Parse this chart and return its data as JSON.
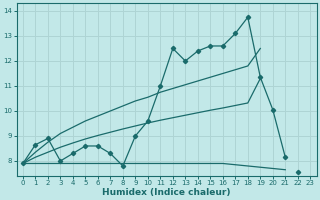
{
  "xlabel": "Humidex (Indice chaleur)",
  "bg_color": "#c2e8e8",
  "grid_color": "#aed4d4",
  "line_color": "#1a6b6b",
  "x_values": [
    0,
    1,
    2,
    3,
    4,
    5,
    6,
    7,
    8,
    9,
    10,
    11,
    12,
    13,
    14,
    15,
    16,
    17,
    18,
    19,
    20,
    21,
    22,
    23
  ],
  "y_main": [
    7.9,
    8.65,
    8.9,
    8.0,
    8.3,
    8.6,
    8.6,
    8.3,
    7.8,
    9.0,
    9.6,
    11.0,
    12.5,
    12.0,
    12.4,
    12.6,
    12.6,
    13.1,
    13.75,
    11.35,
    10.05,
    8.15,
    null,
    null
  ],
  "y_trend_upper": [
    7.9,
    8.35,
    8.75,
    9.1,
    9.35,
    9.6,
    9.8,
    10.0,
    10.2,
    10.4,
    10.55,
    10.75,
    10.9,
    11.05,
    11.2,
    11.35,
    11.5,
    11.65,
    11.8,
    12.5,
    null,
    null,
    null,
    null
  ],
  "y_trend_lower": [
    7.9,
    8.15,
    8.35,
    8.55,
    8.72,
    8.88,
    9.02,
    9.15,
    9.28,
    9.4,
    9.52,
    9.63,
    9.73,
    9.83,
    9.93,
    10.03,
    10.12,
    10.22,
    10.32,
    11.3,
    null,
    null,
    null,
    null
  ],
  "y_flat": [
    7.9,
    7.9,
    7.9,
    7.9,
    7.9,
    7.9,
    7.9,
    7.9,
    7.9,
    7.9,
    7.9,
    7.9,
    7.9,
    7.9,
    7.9,
    7.9,
    7.9,
    7.85,
    7.8,
    7.75,
    7.7,
    7.65,
    null,
    null
  ],
  "y_end_dot": [
    null,
    null,
    null,
    null,
    null,
    null,
    null,
    null,
    null,
    null,
    null,
    null,
    null,
    null,
    null,
    null,
    null,
    null,
    null,
    null,
    null,
    null,
    7.55,
    null
  ],
  "ylim": [
    7.4,
    14.3
  ],
  "xlim": [
    -0.5,
    23.5
  ],
  "yticks": [
    8,
    9,
    10,
    11,
    12,
    13,
    14
  ],
  "xticks": [
    0,
    1,
    2,
    3,
    4,
    5,
    6,
    7,
    8,
    9,
    10,
    11,
    12,
    13,
    14,
    15,
    16,
    17,
    18,
    19,
    20,
    21,
    22,
    23
  ],
  "tick_fontsize": 5.0,
  "xlabel_fontsize": 6.5
}
